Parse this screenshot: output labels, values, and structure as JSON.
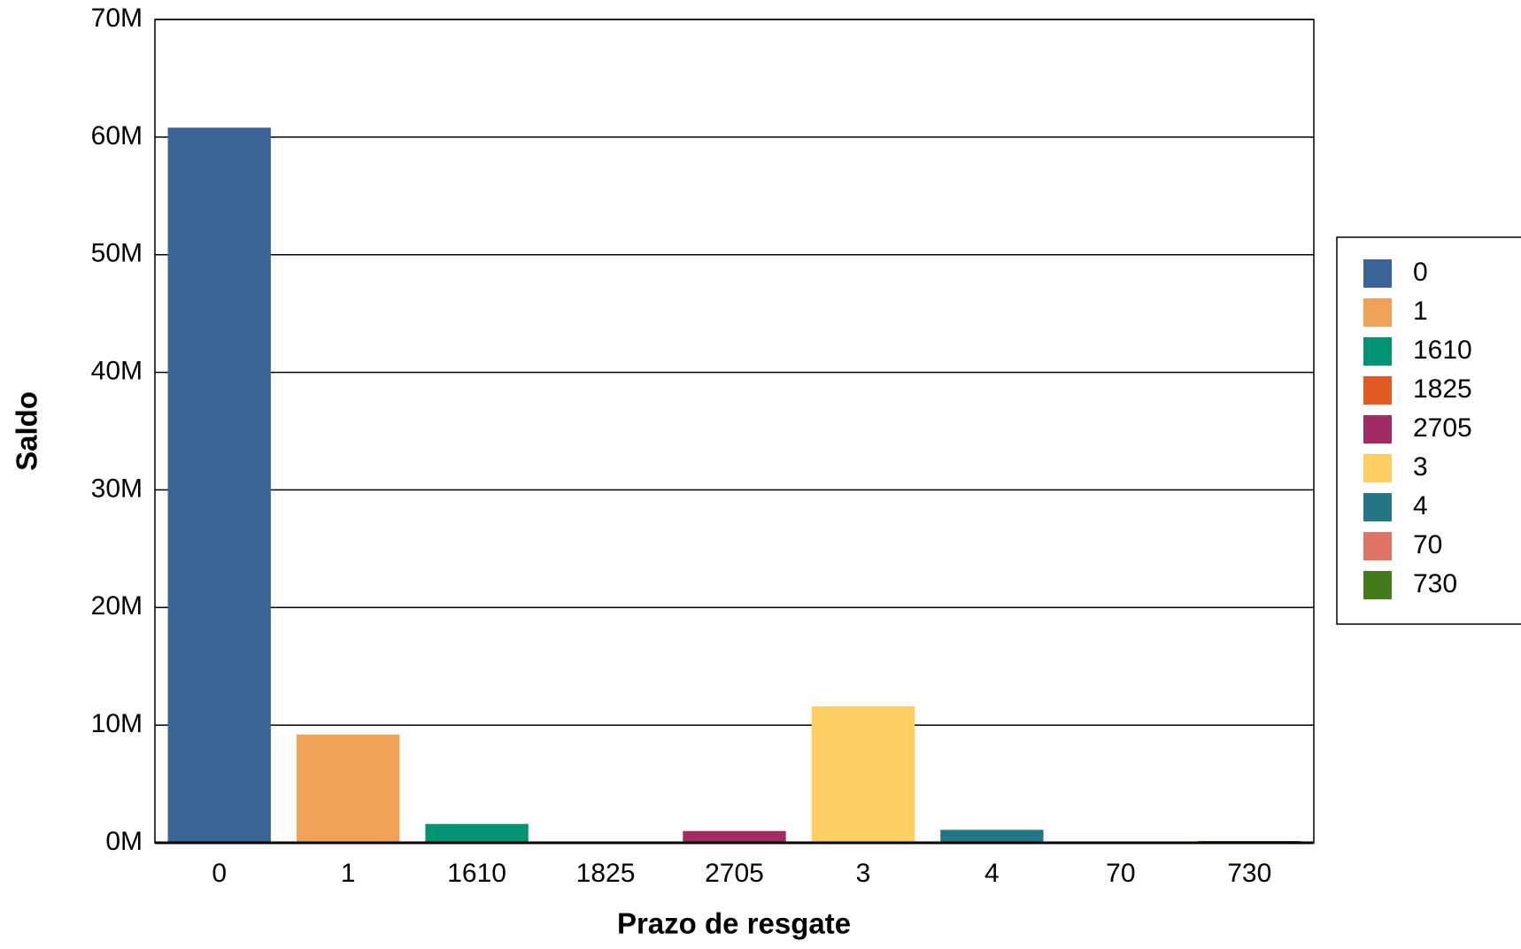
{
  "chart_data": {
    "type": "bar",
    "x_label": "Prazo de resgate",
    "y_label": "Saldo",
    "categories": [
      "0",
      "1",
      "1610",
      "1825",
      "2705",
      "3",
      "4",
      "70",
      "730"
    ],
    "values": [
      60800000,
      9200000,
      1600000,
      50000,
      1000000,
      11600000,
      1100000,
      50000,
      150000
    ],
    "colors": [
      "#3a6596",
      "#f0a354",
      "#009472",
      "#e05a21",
      "#a12c63",
      "#fdcf63",
      "#237685",
      "#e07464",
      "#457a1a"
    ],
    "ylim": [
      0,
      70000000
    ],
    "yticks": [
      {
        "value": 0,
        "label": "0M"
      },
      {
        "value": 10000000,
        "label": "10M"
      },
      {
        "value": 20000000,
        "label": "20M"
      },
      {
        "value": 30000000,
        "label": "30M"
      },
      {
        "value": 40000000,
        "label": "40M"
      },
      {
        "value": 50000000,
        "label": "50M"
      },
      {
        "value": 60000000,
        "label": "60M"
      },
      {
        "value": 70000000,
        "label": "70M"
      }
    ],
    "grid": true,
    "legend": "right"
  }
}
